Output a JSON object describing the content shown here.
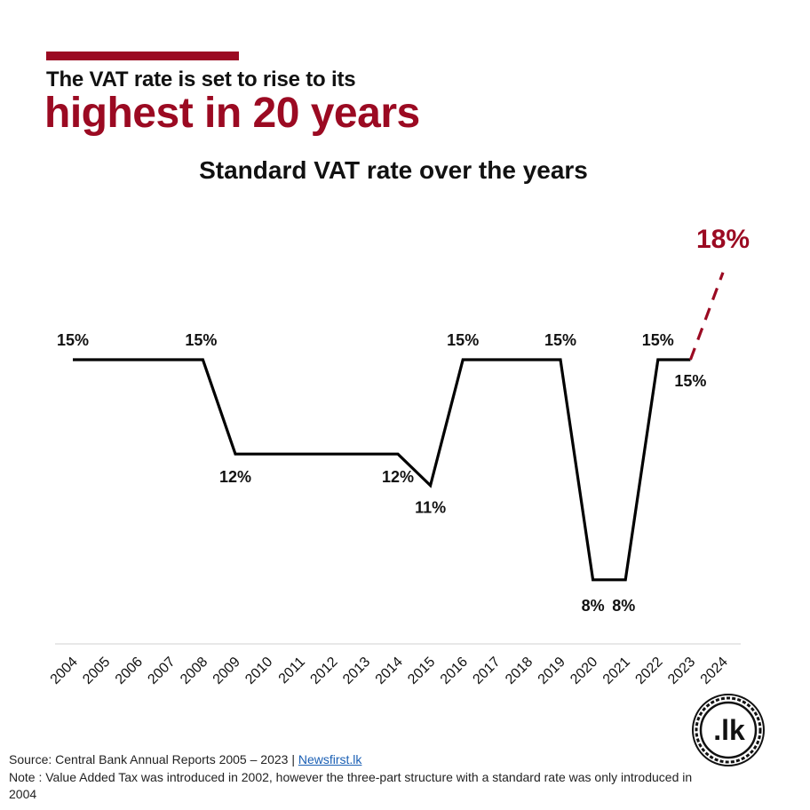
{
  "header": {
    "headline_small": "The VAT rate is set to rise to its",
    "headline_big": "highest in 20 years"
  },
  "chart_data": {
    "type": "line",
    "title": "Standard VAT rate over the years",
    "xlabel": "",
    "ylabel": "",
    "categories": [
      "2004",
      "2005",
      "2006",
      "2007",
      "2008",
      "2009",
      "2010",
      "2011",
      "2012",
      "2013",
      "2014",
      "2015",
      "2016",
      "2017",
      "2018",
      "2019",
      "2020",
      "2021",
      "2022",
      "2023",
      "2024"
    ],
    "x": [
      2004,
      2008,
      2009,
      2014,
      2015,
      2016,
      2019,
      2020,
      2021,
      2022,
      2023,
      2024
    ],
    "series": [
      {
        "values": [
          15,
          15,
          12,
          12,
          11,
          15,
          15,
          8,
          8,
          15,
          15,
          18
        ],
        "style": "solid-then-dashed-final-segment"
      }
    ],
    "point_labels": [
      "15%",
      "15%",
      "12%",
      "12%",
      "11%",
      "15%",
      "15%",
      "8%",
      "8%",
      "15%",
      "15%",
      "18%"
    ],
    "highlight_label": "18%",
    "ylim": [
      7,
      19
    ],
    "grid": false,
    "legend": "none",
    "colors": {
      "line": "#000000",
      "projection": "#9b0a22",
      "axis": "#d9d9d9"
    }
  },
  "footer": {
    "source_prefix": "Source: Central Bank Annual Reports 2005 – 2023 | ",
    "source_link": "Newsfirst.lk",
    "note": "Note :  Value Added Tax was introduced in 2002, however the three-part structure with a standard rate was only introduced in 2004"
  },
  "logo": {
    "text": ".lk",
    "icon": "newsfirst-lk-logo-icon"
  },
  "colors": {
    "accent": "#9b0a22",
    "text": "#111111",
    "link": "#1a5fb4"
  }
}
